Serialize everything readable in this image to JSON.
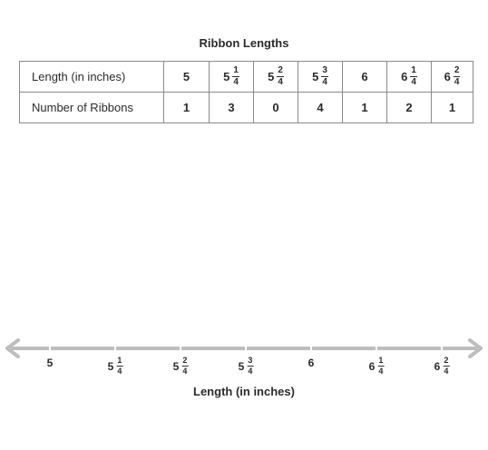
{
  "title": "Ribbon Lengths",
  "table": {
    "row1_label": "Length (in inches)",
    "row2_label": "Number of Ribbons",
    "lengths": [
      {
        "whole": "5",
        "num": "",
        "den": ""
      },
      {
        "whole": "5",
        "num": "1",
        "den": "4"
      },
      {
        "whole": "5",
        "num": "2",
        "den": "4"
      },
      {
        "whole": "5",
        "num": "3",
        "den": "4"
      },
      {
        "whole": "6",
        "num": "",
        "den": ""
      },
      {
        "whole": "6",
        "num": "1",
        "den": "4"
      },
      {
        "whole": "6",
        "num": "2",
        "den": "4"
      }
    ],
    "counts": [
      "1",
      "3",
      "0",
      "4",
      "1",
      "2",
      "1"
    ]
  },
  "number_line": {
    "label": "Length (in inches)",
    "ticks": [
      {
        "whole": "5",
        "num": "",
        "den": ""
      },
      {
        "whole": "5",
        "num": "1",
        "den": "4"
      },
      {
        "whole": "5",
        "num": "2",
        "den": "4"
      },
      {
        "whole": "5",
        "num": "3",
        "den": "4"
      },
      {
        "whole": "6",
        "num": "",
        "den": ""
      },
      {
        "whole": "6",
        "num": "1",
        "den": "4"
      },
      {
        "whole": "6",
        "num": "2",
        "den": "4"
      }
    ],
    "line_color": "#bdbdbd"
  }
}
